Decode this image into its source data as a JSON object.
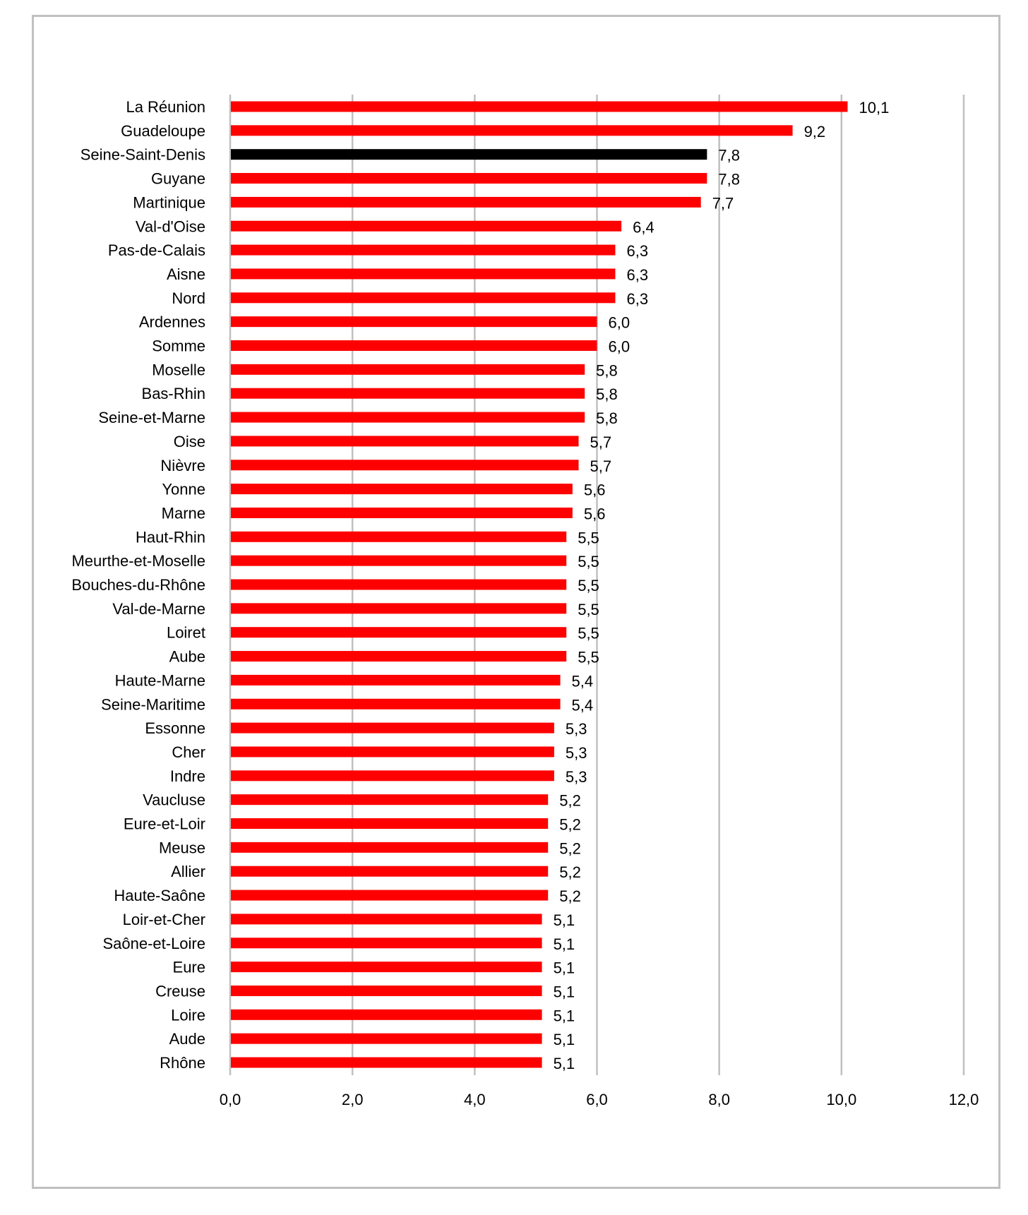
{
  "chart_data": {
    "type": "bar",
    "orientation": "horizontal",
    "title": "",
    "xlabel": "",
    "ylabel": "",
    "xlim": [
      0,
      12
    ],
    "x_ticks": [
      "0,0",
      "2,0",
      "4,0",
      "6,0",
      "8,0",
      "10,0",
      "12,0"
    ],
    "x_tick_values": [
      0,
      2,
      4,
      6,
      8,
      10,
      12
    ],
    "grid": "vertical",
    "colors": {
      "default": "#ff0000",
      "highlight": "#000000",
      "grid": "#c0c0c0"
    },
    "categories": [
      "La Réunion",
      "Guadeloupe",
      "Seine-Saint-Denis",
      "Guyane",
      "Martinique",
      "Val-d'Oise",
      "Pas-de-Calais",
      "Aisne",
      "Nord",
      "Ardennes",
      "Somme",
      "Moselle",
      "Bas-Rhin",
      "Seine-et-Marne",
      "Oise",
      "Nièvre",
      "Yonne",
      "Marne",
      "Haut-Rhin",
      "Meurthe-et-Moselle",
      "Bouches-du-Rhône",
      "Val-de-Marne",
      "Loiret",
      "Aube",
      "Haute-Marne",
      "Seine-Maritime",
      "Essonne",
      "Cher",
      "Indre",
      "Vaucluse",
      "Eure-et-Loir",
      "Meuse",
      "Allier",
      "Haute-Saône",
      "Loir-et-Cher",
      "Saône-et-Loire",
      "Eure",
      "Creuse",
      "Loire",
      "Aude",
      "Rhône"
    ],
    "values": [
      10.1,
      9.2,
      7.8,
      7.8,
      7.7,
      6.4,
      6.3,
      6.3,
      6.3,
      6.0,
      6.0,
      5.8,
      5.8,
      5.8,
      5.7,
      5.7,
      5.6,
      5.6,
      5.5,
      5.5,
      5.5,
      5.5,
      5.5,
      5.5,
      5.4,
      5.4,
      5.3,
      5.3,
      5.3,
      5.2,
      5.2,
      5.2,
      5.2,
      5.2,
      5.1,
      5.1,
      5.1,
      5.1,
      5.1,
      5.1,
      5.1
    ],
    "data_labels": [
      "10,1",
      "9,2",
      "7,8",
      "7,8",
      "7,7",
      "6,4",
      "6,3",
      "6,3",
      "6,3",
      "6,0",
      "6,0",
      "5,8",
      "5,8",
      "5,8",
      "5,7",
      "5,7",
      "5,6",
      "5,6",
      "5,5",
      "5,5",
      "5,5",
      "5,5",
      "5,5",
      "5,5",
      "5,4",
      "5,4",
      "5,3",
      "5,3",
      "5,3",
      "5,2",
      "5,2",
      "5,2",
      "5,2",
      "5,2",
      "5,1",
      "5,1",
      "5,1",
      "5,1",
      "5,1",
      "5,1",
      "5,1"
    ],
    "highlight_index": 2
  }
}
